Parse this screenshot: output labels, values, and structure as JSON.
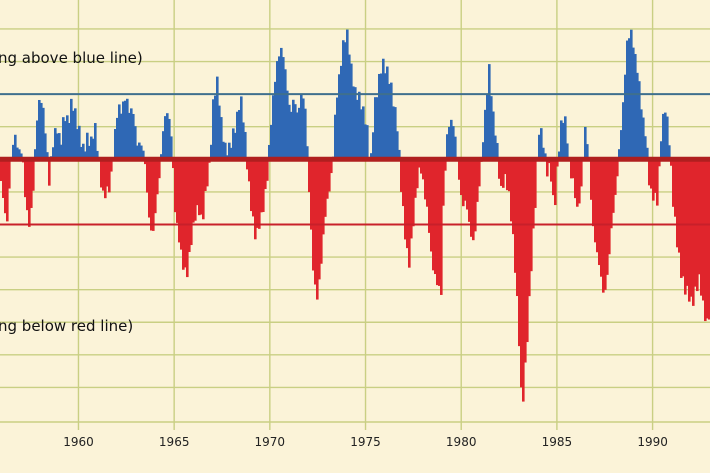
{
  "chart_data": {
    "type": "bar",
    "title": "",
    "xlabel": "",
    "ylabel": "",
    "xlim": [
      1955.9,
      1993.0
    ],
    "ylim": [
      -3.6,
      2.2
    ],
    "baseline": 0,
    "upper_threshold": 0.9,
    "lower_threshold": -0.9,
    "grid": true,
    "legend": "none",
    "colors": {
      "above": "#2f68b5",
      "below": "#e0252c",
      "upper_line": "#3f6f8e",
      "lower_line": "#c8202a",
      "zero_line": "#b01f1f",
      "grid": "#c9cf83",
      "background": "#fbf3d8"
    },
    "annotations": [
      {
        "text": "ng above blue line)",
        "anchor": "upper"
      },
      {
        "text": "ng below red line)",
        "anchor": "lower"
      }
    ],
    "xticks": [
      {
        "value": 1960,
        "label": "1960"
      },
      {
        "value": 1965,
        "label": "1965"
      },
      {
        "value": 1970,
        "label": "1970"
      },
      {
        "value": 1975,
        "label": "1975"
      },
      {
        "value": 1980,
        "label": "1980"
      },
      {
        "value": 1985,
        "label": "1985"
      },
      {
        "value": 1990,
        "label": "1990"
      }
    ],
    "keyframes": [
      [
        1955.9,
        -0.3
      ],
      [
        1956.0,
        -0.6
      ],
      [
        1956.2,
        -1.1
      ],
      [
        1956.4,
        -0.2
      ],
      [
        1956.6,
        0.3
      ],
      [
        1956.8,
        0.2
      ],
      [
        1957.0,
        0.3
      ],
      [
        1957.2,
        -0.5
      ],
      [
        1957.4,
        -0.9
      ],
      [
        1957.6,
        -0.4
      ],
      [
        1957.8,
        0.5
      ],
      [
        1958.0,
        0.7
      ],
      [
        1958.2,
        0.4
      ],
      [
        1958.4,
        -0.2
      ],
      [
        1958.6,
        0.4
      ],
      [
        1958.8,
        0.6
      ],
      [
        1959.0,
        0.2
      ],
      [
        1959.2,
        0.5
      ],
      [
        1959.4,
        0.3
      ],
      [
        1959.6,
        0.7
      ],
      [
        1959.8,
        0.6
      ],
      [
        1960.0,
        0.5
      ],
      [
        1960.2,
        0.3
      ],
      [
        1960.4,
        0.4
      ],
      [
        1960.6,
        0.2
      ],
      [
        1960.8,
        0.3
      ],
      [
        1961.0,
        -0.2
      ],
      [
        1961.2,
        -0.6
      ],
      [
        1961.4,
        -0.4
      ],
      [
        1961.6,
        -0.2
      ],
      [
        1961.8,
        0.4
      ],
      [
        1962.0,
        0.8
      ],
      [
        1962.2,
        0.6
      ],
      [
        1962.4,
        0.7
      ],
      [
        1962.6,
        0.5
      ],
      [
        1962.8,
        0.6
      ],
      [
        1963.0,
        0.3
      ],
      [
        1963.2,
        0.4
      ],
      [
        1963.4,
        0.2
      ],
      [
        1963.6,
        -0.7
      ],
      [
        1963.8,
        -1.2
      ],
      [
        1964.0,
        -0.8
      ],
      [
        1964.2,
        -0.3
      ],
      [
        1964.4,
        0.5
      ],
      [
        1964.6,
        0.8
      ],
      [
        1964.8,
        0.5
      ],
      [
        1965.0,
        -0.6
      ],
      [
        1965.2,
        -1.1
      ],
      [
        1965.4,
        -1.6
      ],
      [
        1965.6,
        -1.8
      ],
      [
        1965.8,
        -1.3
      ],
      [
        1966.0,
        -0.8
      ],
      [
        1966.2,
        -0.5
      ],
      [
        1966.4,
        -0.7
      ],
      [
        1966.6,
        -0.3
      ],
      [
        1966.8,
        -0.1
      ],
      [
        1967.0,
        0.7
      ],
      [
        1967.2,
        0.9
      ],
      [
        1967.4,
        0.4
      ],
      [
        1967.6,
        0.2
      ],
      [
        1967.8,
        0.3
      ],
      [
        1968.0,
        0.5
      ],
      [
        1968.2,
        0.6
      ],
      [
        1968.4,
        0.8
      ],
      [
        1968.6,
        0.3
      ],
      [
        1968.8,
        -0.4
      ],
      [
        1969.0,
        -0.8
      ],
      [
        1969.2,
        -1.0
      ],
      [
        1969.4,
        -0.7
      ],
      [
        1969.6,
        -0.5
      ],
      [
        1969.8,
        -0.2
      ],
      [
        1970.0,
        0.4
      ],
      [
        1970.2,
        0.9
      ],
      [
        1970.4,
        1.3
      ],
      [
        1970.6,
        1.5
      ],
      [
        1970.8,
        1.2
      ],
      [
        1971.0,
        0.8
      ],
      [
        1971.2,
        1.0
      ],
      [
        1971.4,
        0.6
      ],
      [
        1971.6,
        0.8
      ],
      [
        1971.8,
        0.5
      ],
      [
        1972.0,
        -0.6
      ],
      [
        1972.2,
        -1.5
      ],
      [
        1972.4,
        -1.8
      ],
      [
        1972.6,
        -1.3
      ],
      [
        1972.8,
        -0.7
      ],
      [
        1973.0,
        -0.5
      ],
      [
        1973.2,
        -0.3
      ],
      [
        1973.4,
        0.6
      ],
      [
        1973.6,
        1.1
      ],
      [
        1973.8,
        1.7
      ],
      [
        1974.0,
        1.9
      ],
      [
        1974.2,
        1.4
      ],
      [
        1974.4,
        1.0
      ],
      [
        1974.6,
        0.8
      ],
      [
        1974.8,
        0.5
      ],
      [
        1975.0,
        0.3
      ],
      [
        1975.2,
        -0.2
      ],
      [
        1975.4,
        0.8
      ],
      [
        1975.6,
        1.2
      ],
      [
        1975.8,
        1.5
      ],
      [
        1976.0,
        1.3
      ],
      [
        1976.2,
        1.0
      ],
      [
        1976.4,
        0.6
      ],
      [
        1976.6,
        0.3
      ],
      [
        1976.8,
        -0.4
      ],
      [
        1977.0,
        -0.9
      ],
      [
        1977.2,
        -1.3
      ],
      [
        1977.4,
        -0.8
      ],
      [
        1977.6,
        -0.4
      ],
      [
        1977.8,
        -0.2
      ],
      [
        1978.0,
        -0.6
      ],
      [
        1978.2,
        -0.9
      ],
      [
        1978.4,
        -1.4
      ],
      [
        1978.6,
        -1.5
      ],
      [
        1978.8,
        -1.6
      ],
      [
        1978.9,
        -1.7
      ],
      [
        1979.0,
        -0.5
      ],
      [
        1979.2,
        0.3
      ],
      [
        1979.4,
        0.4
      ],
      [
        1979.6,
        0.2
      ],
      [
        1979.8,
        -0.3
      ],
      [
        1980.0,
        -0.6
      ],
      [
        1980.2,
        -0.4
      ],
      [
        1980.4,
        -0.8
      ],
      [
        1980.6,
        -1.1
      ],
      [
        1980.8,
        -0.6
      ],
      [
        1981.0,
        -0.2
      ],
      [
        1981.2,
        0.5
      ],
      [
        1981.4,
        1.2
      ],
      [
        1981.6,
        0.7
      ],
      [
        1981.8,
        0.4
      ],
      [
        1982.0,
        -0.3
      ],
      [
        1982.2,
        -0.2
      ],
      [
        1982.4,
        -0.5
      ],
      [
        1982.6,
        -1.1
      ],
      [
        1982.8,
        -1.8
      ],
      [
        1983.0,
        -2.7
      ],
      [
        1983.1,
        -3.4
      ],
      [
        1983.2,
        -3.1
      ],
      [
        1983.4,
        -2.2
      ],
      [
        1983.6,
        -1.3
      ],
      [
        1983.8,
        -0.6
      ],
      [
        1984.0,
        0.3
      ],
      [
        1984.2,
        0.1
      ],
      [
        1984.4,
        -0.3
      ],
      [
        1984.6,
        -0.1
      ],
      [
        1984.8,
        -0.6
      ],
      [
        1985.0,
        0.2
      ],
      [
        1985.2,
        0.7
      ],
      [
        1985.4,
        0.5
      ],
      [
        1985.6,
        -0.3
      ],
      [
        1985.8,
        -0.5
      ],
      [
        1986.0,
        -0.8
      ],
      [
        1986.2,
        -0.4
      ],
      [
        1986.4,
        0.6
      ],
      [
        1986.6,
        0.3
      ],
      [
        1986.8,
        -0.8
      ],
      [
        1987.0,
        -1.3
      ],
      [
        1987.2,
        -1.7
      ],
      [
        1987.4,
        -2.1
      ],
      [
        1987.6,
        -1.6
      ],
      [
        1987.8,
        -0.8
      ],
      [
        1988.0,
        -0.3
      ],
      [
        1988.2,
        0.3
      ],
      [
        1988.4,
        0.8
      ],
      [
        1988.6,
        1.5
      ],
      [
        1988.8,
        1.6
      ],
      [
        1989.0,
        1.3
      ],
      [
        1989.2,
        1.1
      ],
      [
        1989.4,
        0.7
      ],
      [
        1989.6,
        0.5
      ],
      [
        1989.8,
        -0.3
      ],
      [
        1990.0,
        -0.5
      ],
      [
        1990.2,
        -0.7
      ],
      [
        1990.4,
        0.2
      ],
      [
        1990.6,
        0.6
      ],
      [
        1990.8,
        0.3
      ],
      [
        1991.0,
        -0.4
      ],
      [
        1991.2,
        -0.9
      ],
      [
        1991.4,
        -1.4
      ],
      [
        1991.6,
        -1.8
      ],
      [
        1991.8,
        -2.0
      ],
      [
        1992.0,
        -2.2
      ],
      [
        1992.2,
        -1.9
      ],
      [
        1992.4,
        -1.6
      ],
      [
        1992.6,
        -1.9
      ],
      [
        1992.8,
        -2.1
      ],
      [
        1993.0,
        -1.9
      ]
    ]
  }
}
